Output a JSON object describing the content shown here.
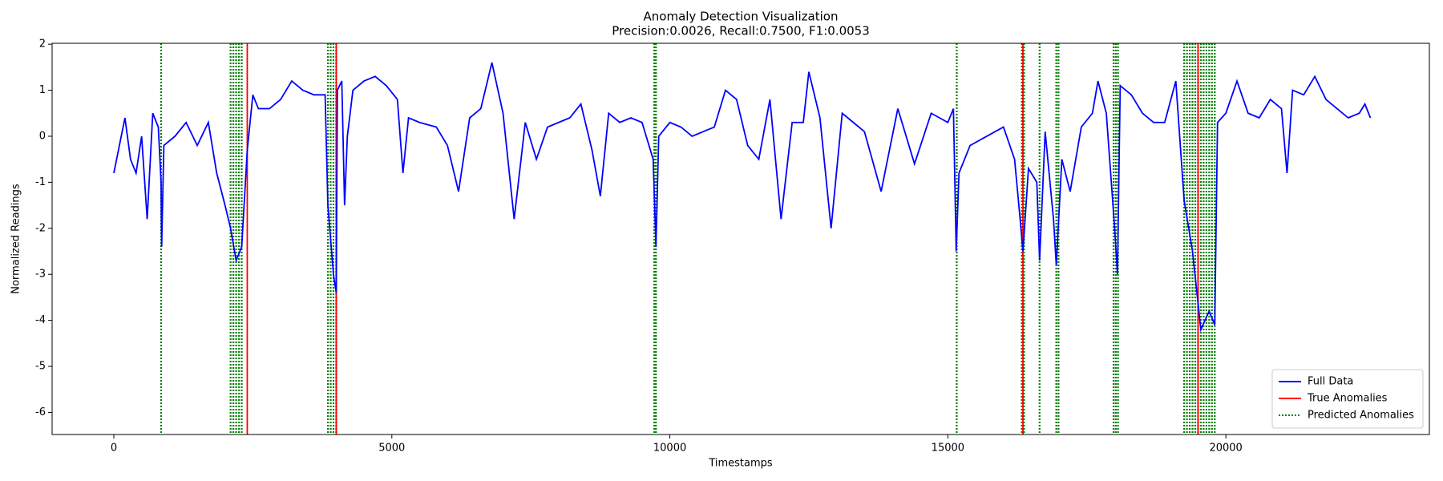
{
  "chart_data": {
    "type": "line",
    "title": "Anomaly Detection Visualization",
    "subtitle": "Precision:0.0026, Recall:0.7500, F1:0.0053",
    "x_label": "Timestamps",
    "y_label": "Normalized Readings",
    "x": [
      0,
      100,
      200,
      300,
      400,
      500,
      600,
      700,
      800,
      850,
      860,
      900,
      1100,
      1300,
      1500,
      1700,
      1850,
      2000,
      2100,
      2200,
      2300,
      2400,
      2500,
      2600,
      2800,
      3000,
      3200,
      3400,
      3600,
      3800,
      3850,
      3950,
      4000,
      4020,
      4100,
      4150,
      4200,
      4300,
      4500,
      4700,
      4900,
      5100,
      5200,
      5300,
      5500,
      5800,
      6000,
      6200,
      6400,
      6600,
      6800,
      7000,
      7200,
      7400,
      7600,
      7800,
      8000,
      8200,
      8400,
      8600,
      8750,
      8900,
      9100,
      9300,
      9500,
      9700,
      9750,
      9800,
      10000,
      10200,
      10400,
      10600,
      10800,
      11000,
      11200,
      11400,
      11600,
      11800,
      12000,
      12200,
      12400,
      12500,
      12700,
      12900,
      13100,
      13300,
      13500,
      13800,
      14100,
      14400,
      14700,
      15000,
      15100,
      15150,
      15200,
      15400,
      15700,
      16000,
      16200,
      16300,
      16350,
      16450,
      16600,
      16650,
      16750,
      16900,
      16950,
      17050,
      17200,
      17400,
      17600,
      17700,
      17850,
      18000,
      18050,
      18100,
      18300,
      18500,
      18700,
      18900,
      19100,
      19250,
      19400,
      19550,
      19700,
      19800,
      19850,
      20000,
      20200,
      20400,
      20600,
      20800,
      21000,
      21100,
      21200,
      21400,
      21600,
      21800,
      22000,
      22200,
      22400,
      22500,
      22600
    ],
    "series": [
      {
        "name": "Full Data",
        "color": "#0000ff",
        "values": [
          -0.8,
          -0.2,
          0.4,
          -0.5,
          -0.8,
          0.0,
          -1.8,
          0.5,
          0.2,
          -1.0,
          -2.4,
          -0.2,
          0.0,
          0.3,
          -0.2,
          0.3,
          -0.8,
          -1.5,
          -2.0,
          -2.7,
          -2.4,
          -0.3,
          0.9,
          0.6,
          0.6,
          0.8,
          1.2,
          1.0,
          0.9,
          0.9,
          -1.5,
          -3.0,
          -3.4,
          1.0,
          1.2,
          -1.5,
          0.0,
          1.0,
          1.2,
          1.3,
          1.1,
          0.8,
          -0.8,
          0.4,
          0.3,
          0.2,
          -0.2,
          -1.2,
          0.4,
          0.6,
          1.6,
          0.5,
          -1.8,
          0.3,
          -0.5,
          0.2,
          0.3,
          0.4,
          0.7,
          -0.3,
          -1.3,
          0.5,
          0.3,
          0.4,
          0.3,
          -0.5,
          -2.4,
          0.0,
          0.3,
          0.2,
          0.0,
          0.1,
          0.2,
          1.0,
          0.8,
          -0.2,
          -0.5,
          0.8,
          -1.8,
          0.3,
          0.3,
          1.4,
          0.4,
          -2.0,
          0.5,
          0.3,
          0.1,
          -1.2,
          0.6,
          -0.6,
          0.5,
          0.3,
          0.6,
          -2.5,
          -0.8,
          -0.2,
          0.0,
          0.2,
          -0.5,
          -1.8,
          -2.5,
          -0.7,
          -1.0,
          -2.7,
          0.1,
          -1.8,
          -2.8,
          -0.5,
          -1.2,
          0.2,
          0.5,
          1.2,
          0.5,
          -2.0,
          -3.0,
          1.1,
          0.9,
          0.5,
          0.3,
          0.3,
          1.2,
          -1.4,
          -2.5,
          -4.2,
          -3.8,
          -4.1,
          0.3,
          0.5,
          1.2,
          0.5,
          0.4,
          0.8,
          0.6,
          -0.8,
          1.0,
          0.9,
          1.3,
          0.8,
          0.6,
          0.4,
          0.5,
          0.7,
          0.4
        ]
      }
    ],
    "vlines": [
      {
        "name": "True Anomalies",
        "color": "#ff0000",
        "style": "solid",
        "x": [
          2400,
          4000,
          16350,
          19500
        ]
      },
      {
        "name": "Predicted Anomalies",
        "color": "#008000",
        "style": "dotted",
        "x": [
          850,
          2100,
          2150,
          2200,
          2250,
          2300,
          3850,
          3900,
          3950,
          4000,
          9720,
          9750,
          15160,
          16330,
          16370,
          16650,
          16950,
          16990,
          17980,
          18020,
          18060,
          19250,
          19300,
          19350,
          19400,
          19450,
          19500,
          19550,
          19600,
          19650,
          19700,
          19750,
          19800
        ]
      }
    ],
    "xlim": [
      -1110,
      23660
    ],
    "ylim": [
      -6.48,
      2.02
    ],
    "xticks": [
      0,
      5000,
      10000,
      15000,
      20000
    ],
    "yticks": [
      -6,
      -5,
      -4,
      -3,
      -2,
      -1,
      0,
      1,
      2
    ],
    "legend": "lower right"
  }
}
